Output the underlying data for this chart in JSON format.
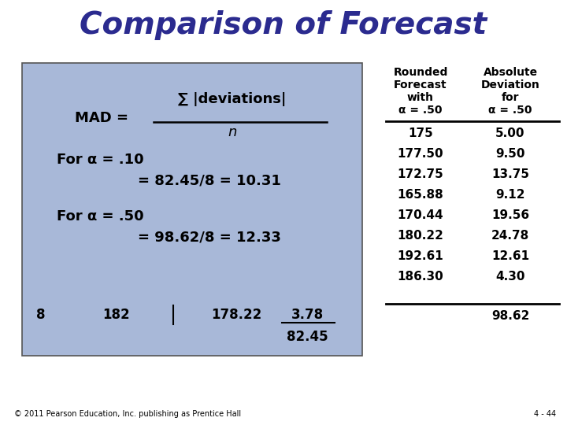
{
  "title": "Comparison of Forecast",
  "title_color": "#2b2b8f",
  "title_fontsize": 28,
  "title_fontstyle": "italic",
  "title_fontweight": "bold",
  "bg_color": "#a8b8d8",
  "text_color": "#000000",
  "mad_label": "MAD =",
  "mad_numerator": "∑ |deviations|",
  "mad_denominator": "n",
  "for_alpha_10": "For α = .10",
  "for_alpha_10_eq": "= 82.45/8 = 10.31",
  "for_alpha_50": "For α = .50",
  "for_alpha_50_eq": "= 98.62/8 = 12.33",
  "bottom_row_left": [
    "8",
    "182"
  ],
  "bottom_row_right": [
    "178.22",
    "3.78"
  ],
  "bottom_total": "82.45",
  "col_header1_lines": [
    "Rounded",
    "Forecast",
    "with",
    "α = .50"
  ],
  "col_header2_lines": [
    "Absolute",
    "Deviation",
    "for",
    "α = .50"
  ],
  "col1_values": [
    "175",
    "177.50",
    "172.75",
    "165.88",
    "170.44",
    "180.22",
    "192.61",
    "186.30"
  ],
  "col2_values": [
    "5.00",
    "9.50",
    "13.75",
    "9.12",
    "19.56",
    "24.78",
    "12.61",
    "4.30"
  ],
  "col2_total": "98.62",
  "footer_left": "© 2011 Pearson Education, Inc. publishing as Prentice Hall",
  "footer_right": "4 - 44"
}
